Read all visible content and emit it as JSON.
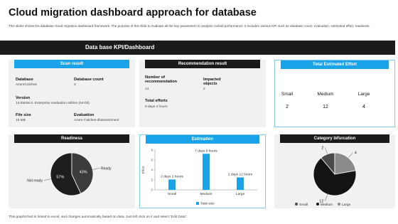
{
  "header": {
    "title": "Cloud migration dashboard approach for database",
    "subtitle": "This slides shows the database cloud migration dashboard framework. The purpose of this slide to evaluate all the key parameters to analysis overall performance. It includes various KPI such as database count, evaluation, estimated effort, readiness."
  },
  "banner": "Data base KPI/Dashboard",
  "scan_result": {
    "title": "Scan result",
    "items": [
      {
        "label": "Database",
        "value": "AzureCalcfest"
      },
      {
        "label": "Database count",
        "value": 3
      },
      {
        "label": "Version",
        "value": "13.05026.0. Enterprise evaluation edition (64-bit)"
      },
      {
        "label": "File size",
        "value": "16 MB"
      },
      {
        "label": "Evaluation",
        "value": "Azure Calcfest dbassessment"
      }
    ]
  },
  "recommendation_result": {
    "title": "Recommendation result",
    "items": [
      {
        "label": "Number of recommendation",
        "value": 14
      },
      {
        "label": "Impacted objects",
        "value": 2
      },
      {
        "label": "Total efforts",
        "value": "9 days 4 hours"
      }
    ]
  },
  "total_estimated_effort": {
    "title": "Total Estimated Effort",
    "items": [
      {
        "label": "Small",
        "value": 2
      },
      {
        "label": "Medium",
        "value": 12
      },
      {
        "label": "Large",
        "value": 4
      }
    ]
  },
  "chart_data": [
    {
      "type": "pie",
      "title": "Readiness",
      "categories": [
        "Not ready",
        "Ready"
      ],
      "values": [
        57,
        43
      ],
      "value_labels": [
        "57%",
        "43%"
      ],
      "colors": [
        "#1e1e1e",
        "#3c3c3c"
      ]
    },
    {
      "type": "bar",
      "title": "Estimation",
      "categories": [
        "Small",
        "Medium",
        "Large"
      ],
      "y_label": "Effort",
      "series": [
        {
          "name": "Task size",
          "color": "#1aa3e8",
          "values": [
            2.08,
            7.25,
            2.5
          ],
          "value_labels": [
            "2 days 2 hours",
            "7 days 6 hours",
            "2 days 12 hours"
          ]
        }
      ],
      "ylim": [
        0,
        8
      ],
      "yticks": [
        0,
        2,
        4,
        6,
        8
      ]
    },
    {
      "type": "pie",
      "title": "Category bifurcation",
      "categories": [
        "Small",
        "Medium",
        "Large"
      ],
      "values": [
        2,
        12,
        4
      ],
      "colors": [
        "#4a4a4a",
        "#141414",
        "#8a8a8a"
      ],
      "legend": "bottom"
    }
  ],
  "footer": "This graph/chart is linked to excel, and changes automatically based on data. Just left click on it and select \"Edit Data\"."
}
